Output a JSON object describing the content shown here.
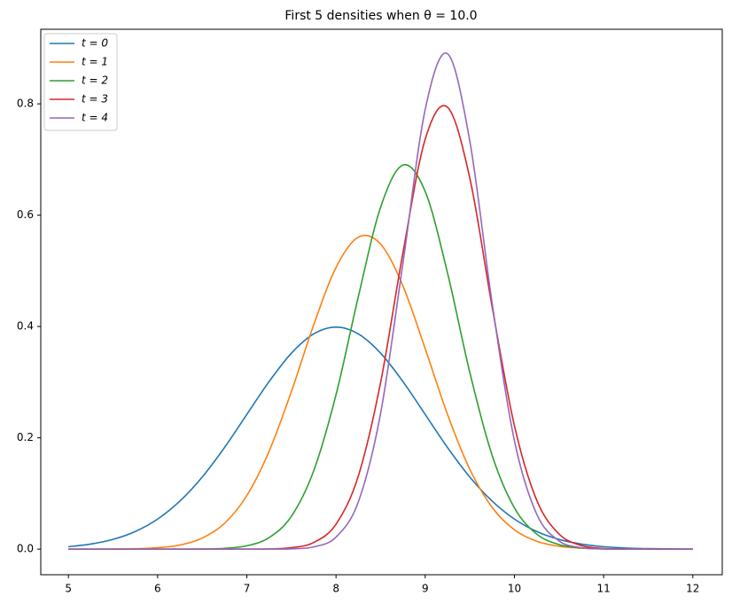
{
  "chart_data": {
    "type": "line",
    "title": "First 5 densities when θ = 10.0",
    "x": [
      5,
      5.25,
      5.5,
      5.75,
      6,
      6.25,
      6.5,
      6.75,
      7,
      7.25,
      7.5,
      7.75,
      8,
      8.25,
      8.5,
      8.75,
      9,
      9.25,
      9.5,
      9.75,
      10,
      10.25,
      10.5,
      10.75,
      11,
      11.25,
      11.5,
      11.75,
      12
    ],
    "series": [
      {
        "name": "t = 0",
        "color": "#1f77b4",
        "values": [
          0.0044,
          0.0091,
          0.0175,
          0.0317,
          0.054,
          0.0863,
          0.1295,
          0.1826,
          0.242,
          0.3011,
          0.3521,
          0.3867,
          0.3989,
          0.3867,
          0.3521,
          0.3011,
          0.242,
          0.1826,
          0.1295,
          0.0863,
          0.054,
          0.0317,
          0.0175,
          0.0091,
          0.0044,
          0.002,
          0.0009,
          0.0004,
          0.0001
        ]
      },
      {
        "name": "t = 1",
        "color": "#ff7f0e",
        "values": [
          0,
          0,
          0.0002,
          0.0007,
          0.0025,
          0.0074,
          0.0198,
          0.0463,
          0.0962,
          0.1758,
          0.2832,
          0.403,
          0.506,
          0.5604,
          0.548,
          0.4728,
          0.36,
          0.242,
          0.1435,
          0.0751,
          0.0347,
          0.0142,
          0.0051,
          0.0016,
          0.0005,
          0.0001,
          0,
          0,
          0
        ]
      },
      {
        "name": "t = 2",
        "color": "#2ca02c",
        "values": [
          0,
          0,
          0,
          0,
          0,
          0,
          0.0003,
          0.0014,
          0.006,
          0.0207,
          0.0591,
          0.1408,
          0.2774,
          0.4535,
          0.6143,
          0.69,
          0.6425,
          0.4962,
          0.3174,
          0.1685,
          0.0741,
          0.027,
          0.0082,
          0.0021,
          0.0004,
          0.0001,
          0,
          0,
          0
        ]
      },
      {
        "name": "t = 3",
        "color": "#d62728",
        "values": [
          0,
          0,
          0,
          0,
          0,
          0,
          0,
          0,
          0.0001,
          0.0004,
          0.0025,
          0.0119,
          0.0448,
          0.1313,
          0.2995,
          0.5323,
          0.7366,
          0.794,
          0.6666,
          0.4357,
          0.2218,
          0.088,
          0.0272,
          0.0065,
          0.0012,
          0.0002,
          0,
          0,
          0
        ]
      },
      {
        "name": "t = 4",
        "color": "#9467bd",
        "values": [
          0,
          0,
          0,
          0,
          0,
          0,
          0,
          0,
          0,
          0.0001,
          0.0005,
          0.004,
          0.0216,
          0.0849,
          0.2441,
          0.5135,
          0.79,
          0.89,
          0.733,
          0.4421,
          0.1949,
          0.0629,
          0.0148,
          0.0026,
          0.0003,
          0,
          0,
          0,
          0
        ]
      }
    ],
    "xlim": [
      4.69,
      12.33
    ],
    "xticks": [
      5,
      6,
      7,
      8,
      9,
      10,
      11,
      12
    ],
    "ylim": [
      -0.046,
      0.934
    ],
    "yticks": [
      {
        "value": 0,
        "label": "0.0"
      },
      {
        "value": 0.2,
        "label": "0.2"
      },
      {
        "value": 0.4,
        "label": "0.4"
      },
      {
        "value": 0.6,
        "label": "0.6"
      },
      {
        "value": 0.8,
        "label": "0.8"
      }
    ],
    "legend": "upper left",
    "grid": false
  }
}
